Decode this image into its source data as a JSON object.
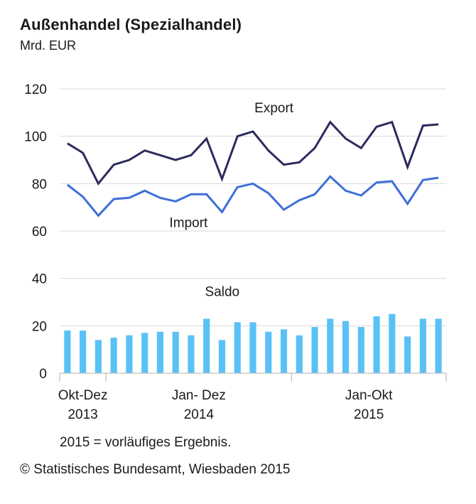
{
  "chart_data": {
    "type": "line",
    "title": "Außenhandel (Spezialhandel)",
    "unit": "Mrd. EUR",
    "ylim": [
      0,
      120
    ],
    "yticks": [
      "0",
      "20",
      "40",
      "60",
      "80",
      "100",
      "120"
    ],
    "grid": true,
    "period_labels": [
      {
        "line1": "Okt-Dez",
        "line2": "2013",
        "start": 0,
        "end": 2
      },
      {
        "line1": "Jan- Dez",
        "line2": "2014",
        "start": 3,
        "end": 14
      },
      {
        "line1": "Jan-Okt",
        "line2": "2015",
        "start": 15,
        "end": 24
      }
    ],
    "series": [
      {
        "name": "Export",
        "type": "line",
        "color": "#2b2b5e",
        "values": [
          97,
          93,
          80,
          88,
          90,
          94,
          92,
          90,
          92,
          99,
          82,
          100,
          102,
          94,
          88,
          89,
          95,
          106,
          99,
          95,
          104,
          106,
          87,
          104.5,
          105
        ]
      },
      {
        "name": "Import",
        "type": "line",
        "color": "#3e6fd8",
        "values": [
          79.5,
          74.5,
          66.5,
          73.5,
          74,
          77,
          74,
          72.5,
          75.5,
          75.5,
          68,
          78.5,
          80,
          76,
          69,
          73,
          75.5,
          83,
          77,
          75,
          80.5,
          81,
          71.5,
          81.5,
          82.5
        ]
      },
      {
        "name": "Saldo",
        "type": "bar",
        "color": "#5ac1f6",
        "values": [
          18,
          18,
          14,
          15,
          16,
          17,
          17.5,
          17.5,
          16,
          23,
          14,
          21.5,
          21.5,
          17.5,
          18.5,
          16,
          19.5,
          23,
          22,
          19.5,
          24,
          25,
          15.5,
          23,
          23
        ]
      }
    ]
  },
  "footnote": "2015 = vorläufiges Ergebnis.",
  "source": "© Statistisches Bundesamt, Wiesbaden 2015"
}
